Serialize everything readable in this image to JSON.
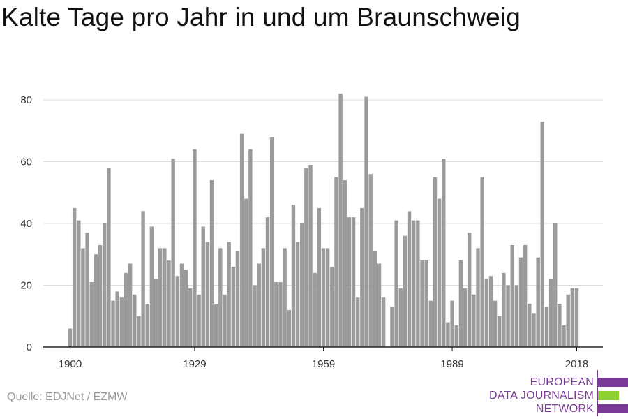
{
  "title": "Kalte Tage pro Jahr in und um Braunschweig",
  "source": "Quelle: EDJNet / EZMW",
  "logo": {
    "lines": [
      "EUROPEAN",
      "DATA JOURNALISM",
      "NETWORK"
    ],
    "colors": {
      "purple": "#7a3b97",
      "green": "#8ed12f"
    }
  },
  "colors": {
    "bar": "#9b9b9b",
    "grid": "#dcdcdc",
    "axis": "#222222"
  },
  "chart_data": {
    "type": "bar",
    "title": "Kalte Tage pro Jahr in und um Braunschweig",
    "xlabel": "",
    "ylabel": "",
    "ylim": [
      0,
      85
    ],
    "yticks": [
      0,
      20,
      40,
      60,
      80
    ],
    "xticks": [
      1900,
      1929,
      1959,
      1989,
      2018
    ],
    "grid": true,
    "x": [
      1900,
      1901,
      1902,
      1903,
      1904,
      1905,
      1906,
      1907,
      1908,
      1909,
      1910,
      1911,
      1912,
      1913,
      1914,
      1915,
      1916,
      1917,
      1918,
      1919,
      1920,
      1921,
      1922,
      1923,
      1924,
      1925,
      1926,
      1927,
      1928,
      1929,
      1930,
      1931,
      1932,
      1933,
      1934,
      1935,
      1936,
      1937,
      1938,
      1939,
      1940,
      1941,
      1942,
      1943,
      1944,
      1945,
      1946,
      1947,
      1948,
      1949,
      1950,
      1951,
      1952,
      1953,
      1954,
      1955,
      1956,
      1957,
      1958,
      1959,
      1960,
      1961,
      1962,
      1963,
      1964,
      1965,
      1966,
      1967,
      1968,
      1969,
      1970,
      1971,
      1972,
      1973,
      1974,
      1975,
      1976,
      1977,
      1978,
      1979,
      1980,
      1981,
      1982,
      1983,
      1984,
      1985,
      1986,
      1987,
      1988,
      1989,
      1990,
      1991,
      1992,
      1993,
      1994,
      1995,
      1996,
      1997,
      1998,
      1999,
      2000,
      2001,
      2002,
      2003,
      2004,
      2005,
      2006,
      2007,
      2008,
      2009,
      2010,
      2011,
      2012,
      2013,
      2014,
      2015,
      2016,
      2017,
      2018
    ],
    "values": [
      6,
      45,
      41,
      32,
      37,
      21,
      30,
      33,
      40,
      58,
      15,
      18,
      16,
      24,
      27,
      17,
      10,
      44,
      14,
      39,
      22,
      32,
      32,
      28,
      61,
      23,
      27,
      25,
      19,
      64,
      17,
      39,
      34,
      54,
      14,
      32,
      17,
      34,
      26,
      31,
      69,
      48,
      64,
      20,
      27,
      32,
      42,
      68,
      21,
      21,
      32,
      12,
      46,
      34,
      40,
      58,
      59,
      24,
      45,
      32,
      32,
      26,
      55,
      82,
      54,
      42,
      42,
      16,
      45,
      81,
      56,
      31,
      27,
      16,
      0,
      13,
      41,
      19,
      36,
      44,
      41,
      41,
      28,
      28,
      15,
      55,
      48,
      61,
      8,
      15,
      7,
      28,
      19,
      37,
      17,
      32,
      55,
      22,
      23,
      15,
      10,
      24,
      20,
      33,
      20,
      29,
      33,
      14,
      11,
      29,
      73,
      13,
      22,
      40,
      14,
      7,
      17,
      19,
      19
    ]
  }
}
